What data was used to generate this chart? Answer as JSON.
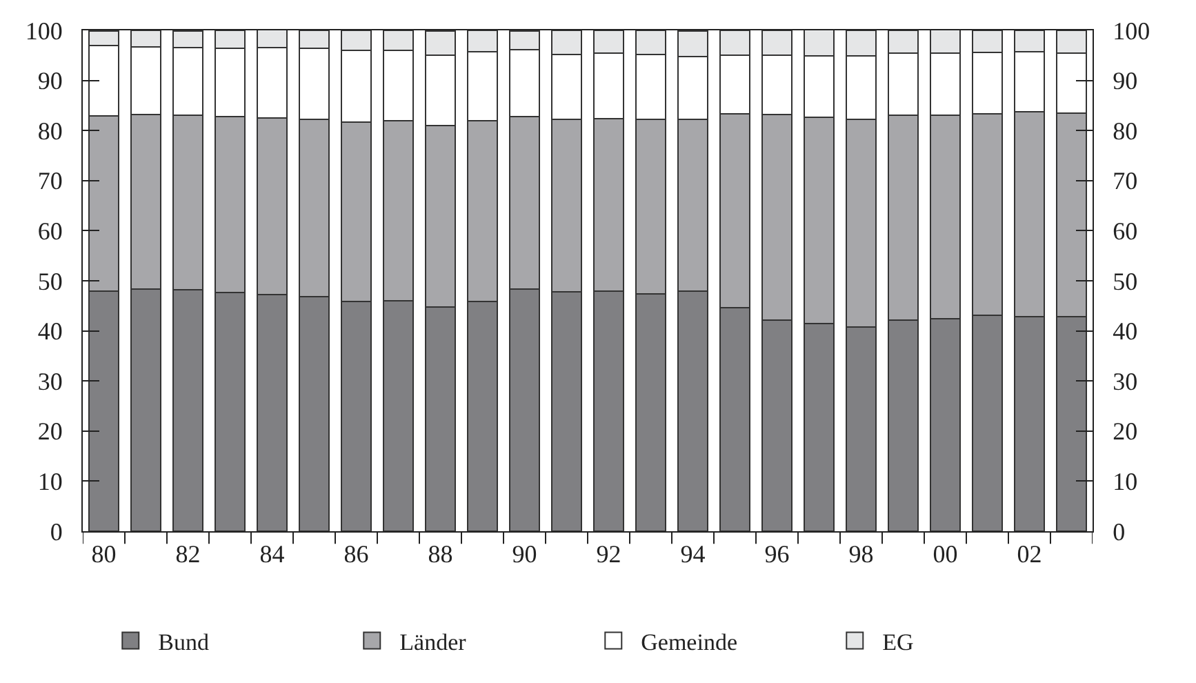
{
  "chart_data": {
    "type": "bar",
    "stacked": true,
    "categories": [
      "80",
      null,
      "82",
      null,
      "84",
      null,
      "86",
      null,
      "88",
      null,
      "90",
      null,
      "92",
      null,
      "94",
      null,
      "96",
      null,
      "98",
      null,
      "00",
      null,
      "02",
      null
    ],
    "series": [
      {
        "name": "Bund",
        "color": "#808083",
        "values": [
          48.0,
          48.4,
          48.2,
          47.7,
          47.2,
          46.8,
          45.9,
          46.0,
          44.8,
          45.9,
          48.4,
          47.8,
          48.0,
          47.4,
          48.0,
          44.6,
          42.1,
          41.4,
          40.8,
          42.2,
          42.4,
          43.1,
          42.9,
          42.9
        ]
      },
      {
        "name": "Länder",
        "color": "#a7a7aa",
        "values": [
          34.9,
          34.8,
          34.9,
          35.1,
          35.3,
          35.5,
          35.8,
          36.0,
          36.2,
          36.0,
          34.4,
          34.5,
          34.4,
          34.8,
          34.2,
          38.8,
          41.1,
          41.2,
          41.4,
          40.8,
          40.7,
          40.3,
          40.8,
          40.6
        ]
      },
      {
        "name": "Gemeinde",
        "color": "#ffffff",
        "values": [
          14.1,
          13.5,
          13.4,
          13.6,
          14.0,
          14.1,
          14.3,
          14.0,
          14.0,
          13.8,
          13.3,
          12.9,
          13.0,
          13.0,
          12.5,
          11.7,
          11.8,
          12.3,
          12.7,
          12.5,
          12.3,
          12.2,
          12.0,
          11.9
        ]
      },
      {
        "name": "EG",
        "color": "#e5e6e7",
        "values": [
          2.9,
          3.3,
          3.4,
          3.6,
          3.6,
          3.6,
          4.0,
          4.0,
          4.9,
          4.3,
          3.8,
          4.8,
          4.6,
          4.8,
          5.2,
          4.9,
          5.0,
          5.2,
          5.1,
          4.5,
          4.7,
          4.4,
          4.3,
          4.6
        ]
      }
    ],
    "ylim": [
      0,
      100
    ],
    "yticks": [
      0,
      10,
      20,
      30,
      40,
      50,
      60,
      70,
      80,
      90,
      100
    ],
    "y2lim": [
      0,
      100
    ],
    "y2ticks": [
      0,
      10,
      20,
      30,
      40,
      50,
      60,
      70,
      80,
      90,
      100
    ],
    "legend": "bottom"
  }
}
